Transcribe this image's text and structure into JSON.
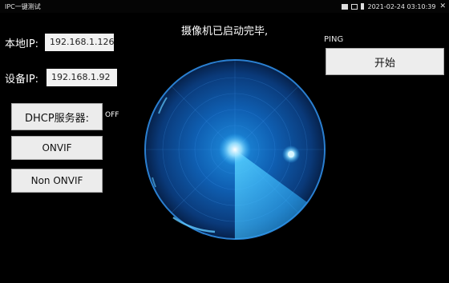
{
  "status_bar": {
    "app_title": "IPC一键测试",
    "datetime": "2021-02-24 03:10:39"
  },
  "message": "摄像机已启动完毕,",
  "local_ip": {
    "label": "本地IP:",
    "value": "192.168.1.126"
  },
  "device_ip": {
    "label": "设备IP:",
    "value": "192.168.1.92"
  },
  "buttons": {
    "dhcp": "DHCP服务器:",
    "onvif": "ONVIF",
    "non_onvif": "Non ONVIF"
  },
  "dhcp_status": "OFF",
  "ping": {
    "label": "PING",
    "start": "开始"
  },
  "radar": {
    "icon": "radar-scan-icon",
    "accent": "#2fb8ff"
  }
}
